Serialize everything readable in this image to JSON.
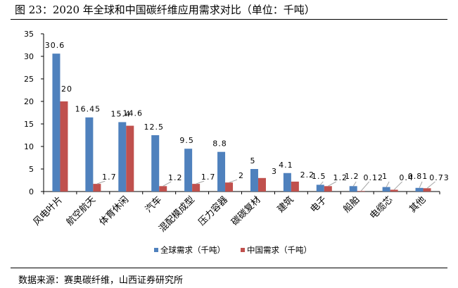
{
  "figure": {
    "title": "图 23：2020 年全球和中国碳纤维应用需求对比（单位：千吨）",
    "source": "数据来源：赛奥碳纤维，山西证券研究所"
  },
  "colors": {
    "global": "#4F81BD",
    "china": "#C0504D",
    "axis": "#000000",
    "leader": "#A6A6A6"
  },
  "chart_data": {
    "type": "bar",
    "title": "",
    "xlabel": "",
    "ylabel": "",
    "ylim": [
      0,
      35
    ],
    "yticks": [
      "0",
      "5",
      "10",
      "15",
      "20",
      "25",
      "30",
      "35"
    ],
    "grid": false,
    "legend_position": "bottom",
    "categories": [
      "风电叶片",
      "航空航天",
      "体育休闲",
      "汽车",
      "混配模成型",
      "压力容器",
      "碳碳复材",
      "建筑",
      "电子",
      "船舶",
      "电缆芯",
      "其他"
    ],
    "series": [
      {
        "name": "全球需求（千吨）",
        "values": [
          30.6,
          16.45,
          15.4,
          12.5,
          9.5,
          8.8,
          5,
          4.1,
          1.5,
          1.2,
          1,
          0.81
        ],
        "labels": [
          "30.6",
          "16.45",
          "15.4",
          "12.5",
          "9.5",
          "8.8",
          "5",
          "4.1",
          "1.5",
          "1.2",
          "1",
          "0.81"
        ]
      },
      {
        "name": "中国需求（千吨）",
        "values": [
          20,
          1.7,
          14.6,
          1.2,
          1.7,
          2,
          3,
          2.2,
          1.2,
          0.12,
          0.4,
          0.73
        ],
        "labels": [
          "20",
          "1.7",
          "14.6",
          "1.2",
          "1.7",
          "2",
          "3",
          "2.2",
          "1.2",
          "0.12",
          "0.4",
          "0.73"
        ]
      }
    ]
  }
}
